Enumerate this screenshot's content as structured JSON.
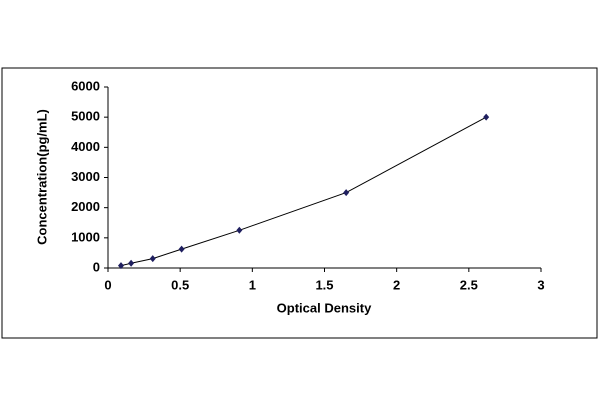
{
  "chart_data": {
    "type": "scatter",
    "x_label": "Optical Density",
    "y_label": "Concentration(pg/mL)",
    "series": [
      {
        "x": [
          0.09,
          0.16,
          0.31,
          0.51,
          0.91,
          1.65,
          2.62
        ],
        "values": [
          78,
          156,
          312,
          625,
          1250,
          2500,
          5000
        ],
        "color": "#1f1f5f"
      }
    ],
    "line": true,
    "xlim": [
      0,
      3
    ],
    "xticks": [
      0,
      0.5,
      1,
      1.5,
      2,
      2.5,
      3
    ],
    "ylim": [
      0,
      6000
    ],
    "yticks": [
      0,
      1000,
      2000,
      3000,
      4000,
      5000,
      6000
    ],
    "grid": false
  }
}
